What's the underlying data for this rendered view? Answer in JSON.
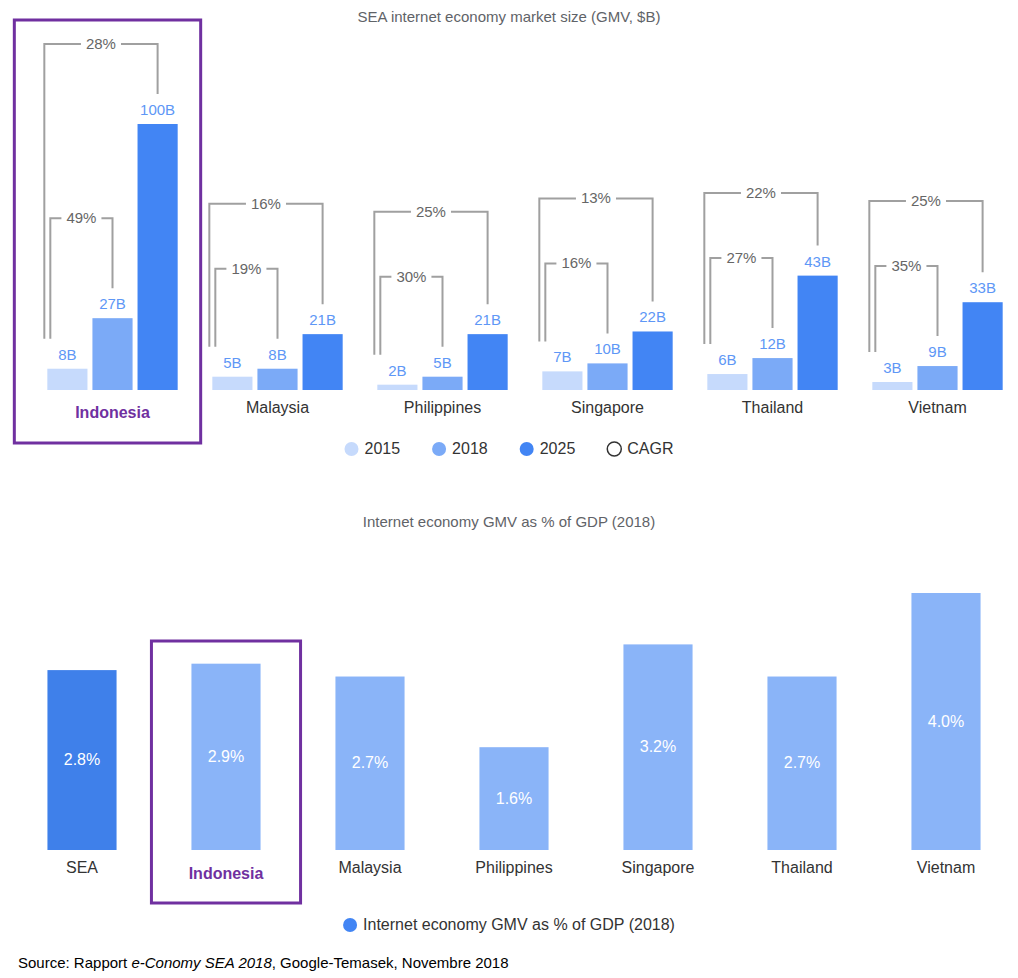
{
  "chart_data": [
    {
      "type": "bar",
      "title": "SEA internet economy market size (GMV, $B)",
      "categories": [
        "Indonesia",
        "Malaysia",
        "Philippines",
        "Singapore",
        "Thailand",
        "Vietnam"
      ],
      "series": [
        {
          "name": "2015",
          "color": "#c6dafc",
          "values": [
            8,
            5,
            2,
            7,
            6,
            3
          ],
          "value_labels": [
            "8B",
            "5B",
            "2B",
            "7B",
            "6B",
            "3B"
          ]
        },
        {
          "name": "2018",
          "color": "#7baaf7",
          "values": [
            27,
            8,
            5,
            10,
            12,
            9
          ],
          "value_labels": [
            "27B",
            "8B",
            "5B",
            "10B",
            "12B",
            "9B"
          ]
        },
        {
          "name": "2025",
          "color": "#4285f4",
          "values": [
            100,
            21,
            21,
            22,
            43,
            33
          ],
          "value_labels": [
            "100B",
            "21B",
            "21B",
            "22B",
            "43B",
            "33B"
          ]
        }
      ],
      "cagr": {
        "name": "CAGR",
        "values_2015_2018": [
          49,
          19,
          30,
          16,
          27,
          35
        ],
        "value_labels_2015_2018": [
          "49%",
          "19%",
          "30%",
          "16%",
          "27%",
          "35%"
        ],
        "values_2015_2025": [
          28,
          16,
          25,
          13,
          22,
          25
        ],
        "value_labels_2015_2025": [
          "28%",
          "16%",
          "25%",
          "13%",
          "22%",
          "25%"
        ]
      },
      "ylim": [
        0,
        100
      ],
      "tick_labels": "x",
      "data_labels": true,
      "legend": "bottom",
      "grid": false
    },
    {
      "type": "bar",
      "title": "Internet economy GMV as % of GDP (2018)",
      "categories": [
        "SEA",
        "Indonesia",
        "Malaysia",
        "Philippines",
        "Singapore",
        "Thailand",
        "Vietnam"
      ],
      "series": [
        {
          "name": "Internet economy GMV as % of GDP (2018)",
          "color": "#4285f4",
          "colors": [
            "#3f80ea",
            "#8ab4f8",
            "#8ab4f8",
            "#8ab4f8",
            "#8ab4f8",
            "#8ab4f8",
            "#8ab4f8"
          ],
          "values": [
            2.8,
            2.9,
            2.7,
            1.6,
            3.2,
            2.7,
            4.0
          ],
          "value_labels": [
            "2.8%",
            "2.9%",
            "2.7%",
            "1.6%",
            "3.2%",
            "2.7%",
            "4.0%"
          ]
        }
      ],
      "ylim": [
        0,
        4.0
      ],
      "tick_labels": "x",
      "data_labels": true,
      "legend": "bottom",
      "grid": false
    }
  ],
  "source": {
    "before": "Source: Rapport ",
    "title": "e-Conomy SEA 2018",
    "after": ", Google-Temasek, Novembre 2018"
  }
}
